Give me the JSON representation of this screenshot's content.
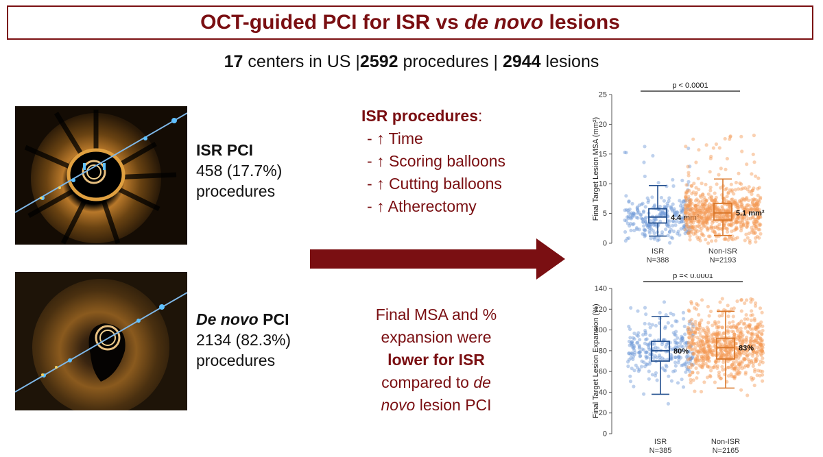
{
  "title": {
    "part1": "OCT-guided PCI for ISR vs ",
    "part2": "de novo",
    "part3": " lesions"
  },
  "subtitle": {
    "n1": "17",
    "t1": " centers in US |",
    "n2": "2592",
    "t2": " procedures | ",
    "n3": "2944",
    "t3": " lesions"
  },
  "isr_block": {
    "heading": "ISR PCI",
    "count": "458 (17.7%)",
    "unit": "procedures"
  },
  "denovo_block": {
    "heading": "De novo",
    "heading_rest": " PCI",
    "count": "2134 (82.3%)",
    "unit": "procedures"
  },
  "isr_procedures": {
    "heading": "ISR procedures",
    "colon": ":",
    "items": [
      "- ↑ Time",
      "- ↑ Scoring balloons",
      "- ↑ Cutting balloons",
      "- ↑ Atherectomy"
    ]
  },
  "final_text": {
    "l1": "Final MSA and %",
    "l2": "expansion were",
    "l3": "lower for ISR",
    "l4a": "compared to ",
    "l4b": "de",
    "l5a": "novo",
    "l5b": " lesion PCI"
  },
  "colors": {
    "accent": "#7a0f12",
    "isr": "#6f9ad8",
    "nonisr": "#f59a55",
    "isr_box": "#24508f",
    "nonisr_box": "#d9772a"
  },
  "chart_data": [
    {
      "type": "box",
      "ylabel": "Final Target Lesion MSA (mm²)",
      "ylim": [
        0,
        25
      ],
      "yticks": [
        0,
        5,
        10,
        15,
        20,
        25
      ],
      "pvalue": "p < 0.0001",
      "groups": [
        {
          "name": "ISR",
          "n_label": "N=388",
          "min": 1.2,
          "q1": 3.4,
          "median": 4.4,
          "q3": 5.8,
          "max": 9.7,
          "label": "4.4 mm²"
        },
        {
          "name": "Non-ISR",
          "n_label": "N=2193",
          "min": 1.3,
          "q1": 3.9,
          "median": 5.1,
          "q3": 6.7,
          "max": 10.8,
          "label": "5.1 mm²"
        }
      ]
    },
    {
      "type": "box",
      "ylabel": "Final Target Lesion Expansion (%)",
      "ylim": [
        0,
        140
      ],
      "yticks": [
        0,
        20,
        40,
        60,
        80,
        100,
        120,
        140
      ],
      "pvalue": "p =< 0.0001",
      "groups": [
        {
          "name": "ISR",
          "n_label": "N=385",
          "min": 38,
          "q1": 70,
          "median": 80,
          "q3": 89,
          "max": 113,
          "label": "80%"
        },
        {
          "name": "Non-ISR",
          "n_label": "N=2165",
          "min": 44,
          "q1": 72,
          "median": 83,
          "q3": 92,
          "max": 118,
          "label": "83%"
        }
      ]
    }
  ]
}
